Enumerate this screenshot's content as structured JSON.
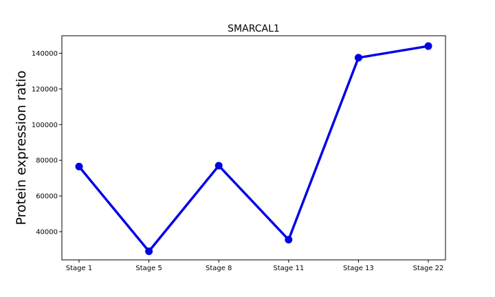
{
  "chart_data": {
    "type": "line",
    "title": "SMARCAL1",
    "xlabel": "",
    "ylabel": "Protein expression ratio",
    "categories": [
      "Stage 1",
      "Stage 5",
      "Stage 8",
      "Stage 11",
      "Stage 13",
      "Stage 22"
    ],
    "series": [
      {
        "values": [
          76500,
          29000,
          77000,
          35500,
          137500,
          144000
        ],
        "color": "#0000e6"
      }
    ],
    "ylim": [
      24200,
      149800
    ],
    "yticks": [
      40000,
      60000,
      80000,
      100000,
      120000,
      140000
    ],
    "ytick_labels": [
      "40000",
      "60000",
      "80000",
      "100000",
      "120000",
      "140000"
    ],
    "grid": false,
    "legend": "none"
  }
}
